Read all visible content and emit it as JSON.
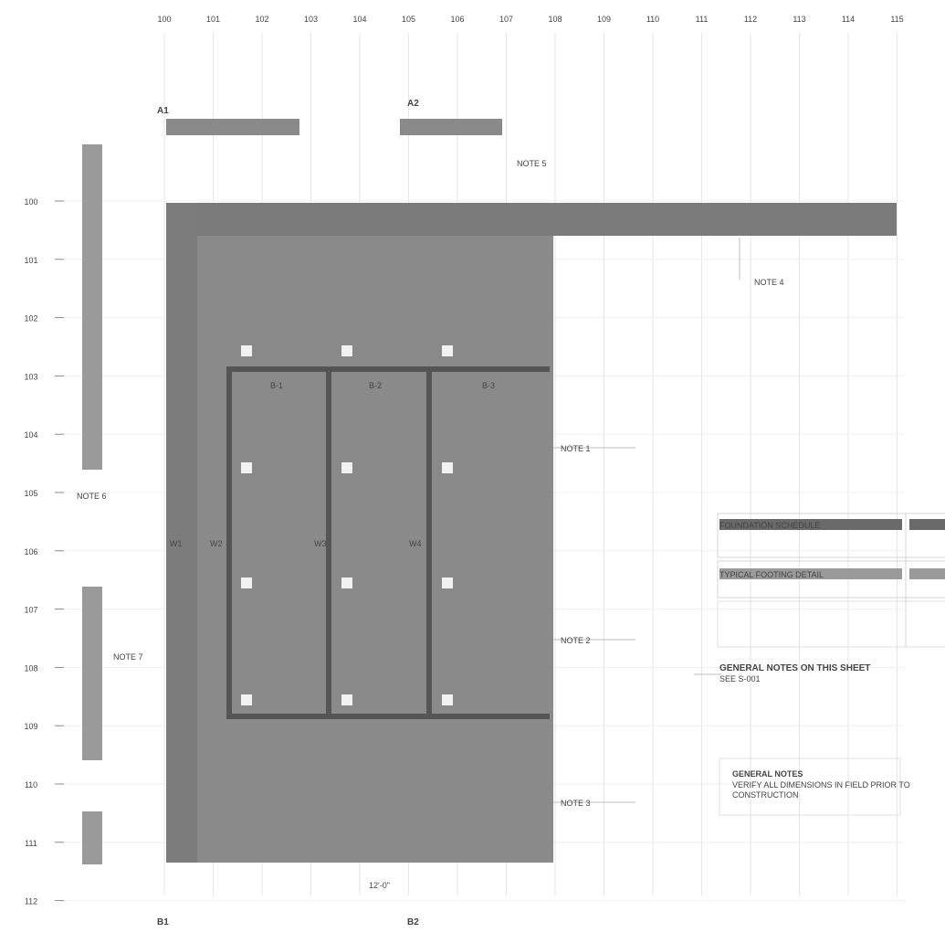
{
  "columns": [
    "100",
    "101",
    "102",
    "103",
    "104",
    "105",
    "106",
    "107",
    "108",
    "109",
    "110",
    "111",
    "112",
    "113",
    "114",
    "115"
  ],
  "rows": [
    "100",
    "101",
    "102",
    "103",
    "104",
    "105",
    "106",
    "107",
    "108",
    "109",
    "110",
    "111",
    "112"
  ],
  "section_marks": [
    "A1",
    "A2",
    "B1",
    "B2"
  ],
  "wall_labels": [
    "W1",
    "W2",
    "W3",
    "W4"
  ],
  "anchors": [
    "P1",
    "P2",
    "P3",
    "P4",
    "P5",
    "P6",
    "P7",
    "P8",
    "P9",
    "P10",
    "P11",
    "P12"
  ],
  "beam_tags": [
    "B-1",
    "B-2",
    "B-3"
  ],
  "bottom_dim": "12'-0\"",
  "notes": {
    "n1": "NOTE 1",
    "n2": "NOTE 2",
    "n3": "NOTE 3",
    "n4": "NOTE 4",
    "n5": "NOTE 5",
    "n6": "NOTE 6",
    "n7": "NOTE 7"
  },
  "schedule": {
    "header": "FOUNDATION SCHEDULE",
    "sub": "TYPICAL FOOTING DETAIL",
    "caption": "GENERAL NOTES ON THIS SHEET",
    "caption_sub": "SEE S-001"
  },
  "note_box": {
    "title": "GENERAL NOTES",
    "line1": "VERIFY ALL DIMENSIONS IN FIELD PRIOR TO",
    "line2": "CONSTRUCTION"
  },
  "colors": {
    "slab": "#8a8a8a",
    "slab_dark": "#6e6e6e",
    "wall": "#5a5a5a",
    "grid": "#cfcfcf",
    "bar": "#9a9a9a"
  }
}
